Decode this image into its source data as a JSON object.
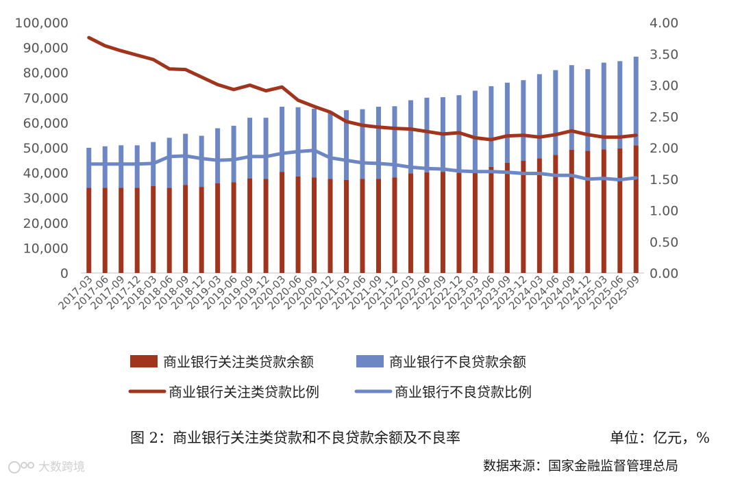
{
  "caption": "图 2：商业银行关注类贷款和不良贷款余额及不良率",
  "unit": "单位：亿元，%",
  "source": "数据来源：国家金融监督管理总局",
  "watermark": "大数跨境",
  "colors": {
    "attention": "#a0341c",
    "npl": "#6d86c4",
    "axis_text": "#555555"
  },
  "chart_data": {
    "type": "bar",
    "stacked": true,
    "categories": [
      "2017-03",
      "2017-06",
      "2017-09",
      "2017-12",
      "2018-03",
      "2018-06",
      "2018-09",
      "2018-12",
      "2019-03",
      "2019-06",
      "2019-09",
      "2019-12",
      "2020-03",
      "2020-06",
      "2020-09",
      "2020-12",
      "2021-03",
      "2021-06",
      "2021-09",
      "2021-12",
      "2022-03",
      "2022-06",
      "2022-09",
      "2022-12",
      "2023-03",
      "2023-06",
      "2023-09",
      "2023-12",
      "2024-03",
      "2024-06",
      "2024-09",
      "2024-12",
      "2025-03",
      "2025-06",
      "2025-09"
    ],
    "y_left": {
      "min": 0,
      "max": 100000,
      "step": 10000,
      "ticks": [
        "0",
        "10,000",
        "20,000",
        "30,000",
        "40,000",
        "50,000",
        "60,000",
        "70,000",
        "80,000",
        "90,000",
        "100,000"
      ]
    },
    "y_right": {
      "min": 0,
      "max": 4,
      "step": 0.5,
      "ticks": [
        "0.00",
        "0.50",
        "1.00",
        "1.50",
        "2.00",
        "2.50",
        "3.00",
        "3.50",
        "4.00"
      ]
    },
    "series": [
      {
        "name": "商业银行关注类贷款余额",
        "kind": "bar",
        "axis": "left",
        "values": [
          34000,
          34000,
          34000,
          34000,
          34700,
          34000,
          35200,
          34400,
          35800,
          36200,
          37800,
          37600,
          40400,
          38600,
          38200,
          37600,
          37200,
          37600,
          37600,
          38200,
          39800,
          40200,
          40400,
          40000,
          40000,
          42400,
          44000,
          44800,
          45800,
          47200,
          49200,
          48800,
          49400,
          49800,
          51000
        ]
      },
      {
        "name": "商业银行不良贷款余额",
        "kind": "bar",
        "axis": "left",
        "values": [
          16000,
          16600,
          17000,
          17000,
          17600,
          20000,
          20400,
          20400,
          22000,
          22600,
          24200,
          24400,
          26000,
          27600,
          27400,
          26400,
          27800,
          27800,
          28800,
          28400,
          29200,
          29800,
          29800,
          31000,
          32800,
          32200,
          32000,
          32200,
          33600,
          33800,
          33800,
          32600,
          34600,
          34800,
          35400
        ]
      },
      {
        "name": "商业银行关注类贷款比例",
        "kind": "line",
        "axis": "right",
        "values": [
          3.76,
          3.63,
          3.55,
          3.48,
          3.41,
          3.26,
          3.25,
          3.13,
          3.01,
          2.93,
          3.0,
          2.91,
          2.97,
          2.76,
          2.66,
          2.57,
          2.42,
          2.36,
          2.33,
          2.31,
          2.3,
          2.26,
          2.22,
          2.24,
          2.16,
          2.13,
          2.19,
          2.2,
          2.17,
          2.21,
          2.27,
          2.21,
          2.17,
          2.17,
          2.2
        ]
      },
      {
        "name": "商业银行不良贷款比例",
        "kind": "line",
        "axis": "right",
        "values": [
          1.74,
          1.74,
          1.74,
          1.74,
          1.75,
          1.86,
          1.87,
          1.83,
          1.8,
          1.81,
          1.86,
          1.86,
          1.91,
          1.94,
          1.96,
          1.84,
          1.8,
          1.76,
          1.75,
          1.73,
          1.69,
          1.67,
          1.66,
          1.63,
          1.62,
          1.62,
          1.61,
          1.59,
          1.59,
          1.56,
          1.56,
          1.5,
          1.51,
          1.49,
          1.52
        ]
      }
    ]
  }
}
